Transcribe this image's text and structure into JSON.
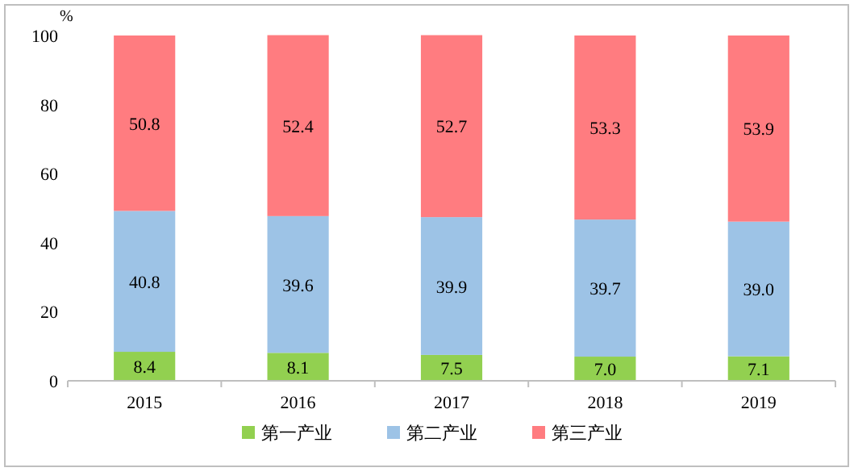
{
  "chart_data": {
    "type": "bar",
    "stacked": true,
    "ylabel": "%",
    "categories": [
      "2015",
      "2016",
      "2017",
      "2018",
      "2019"
    ],
    "series": [
      {
        "name": "第一产业",
        "color": "#92d050",
        "values": [
          8.4,
          8.1,
          7.5,
          7.0,
          7.1
        ],
        "value_labels": [
          "8.4",
          "8.1",
          "7.5",
          "7.0",
          "7.1"
        ]
      },
      {
        "name": "第二产业",
        "color": "#9dc3e6",
        "values": [
          40.8,
          39.6,
          39.9,
          39.7,
          39.0
        ],
        "value_labels": [
          "40.8",
          "39.6",
          "39.9",
          "39.7",
          "39.0"
        ]
      },
      {
        "name": "第三产业",
        "color": "#ff7c80",
        "values": [
          50.8,
          52.4,
          52.7,
          53.3,
          53.9
        ],
        "value_labels": [
          "50.8",
          "52.4",
          "52.7",
          "53.3",
          "53.9"
        ]
      }
    ],
    "ylim": [
      0,
      100
    ],
    "yticks": [
      0,
      20,
      40,
      60,
      80,
      100
    ],
    "legend": "bottom",
    "grid": false
  }
}
